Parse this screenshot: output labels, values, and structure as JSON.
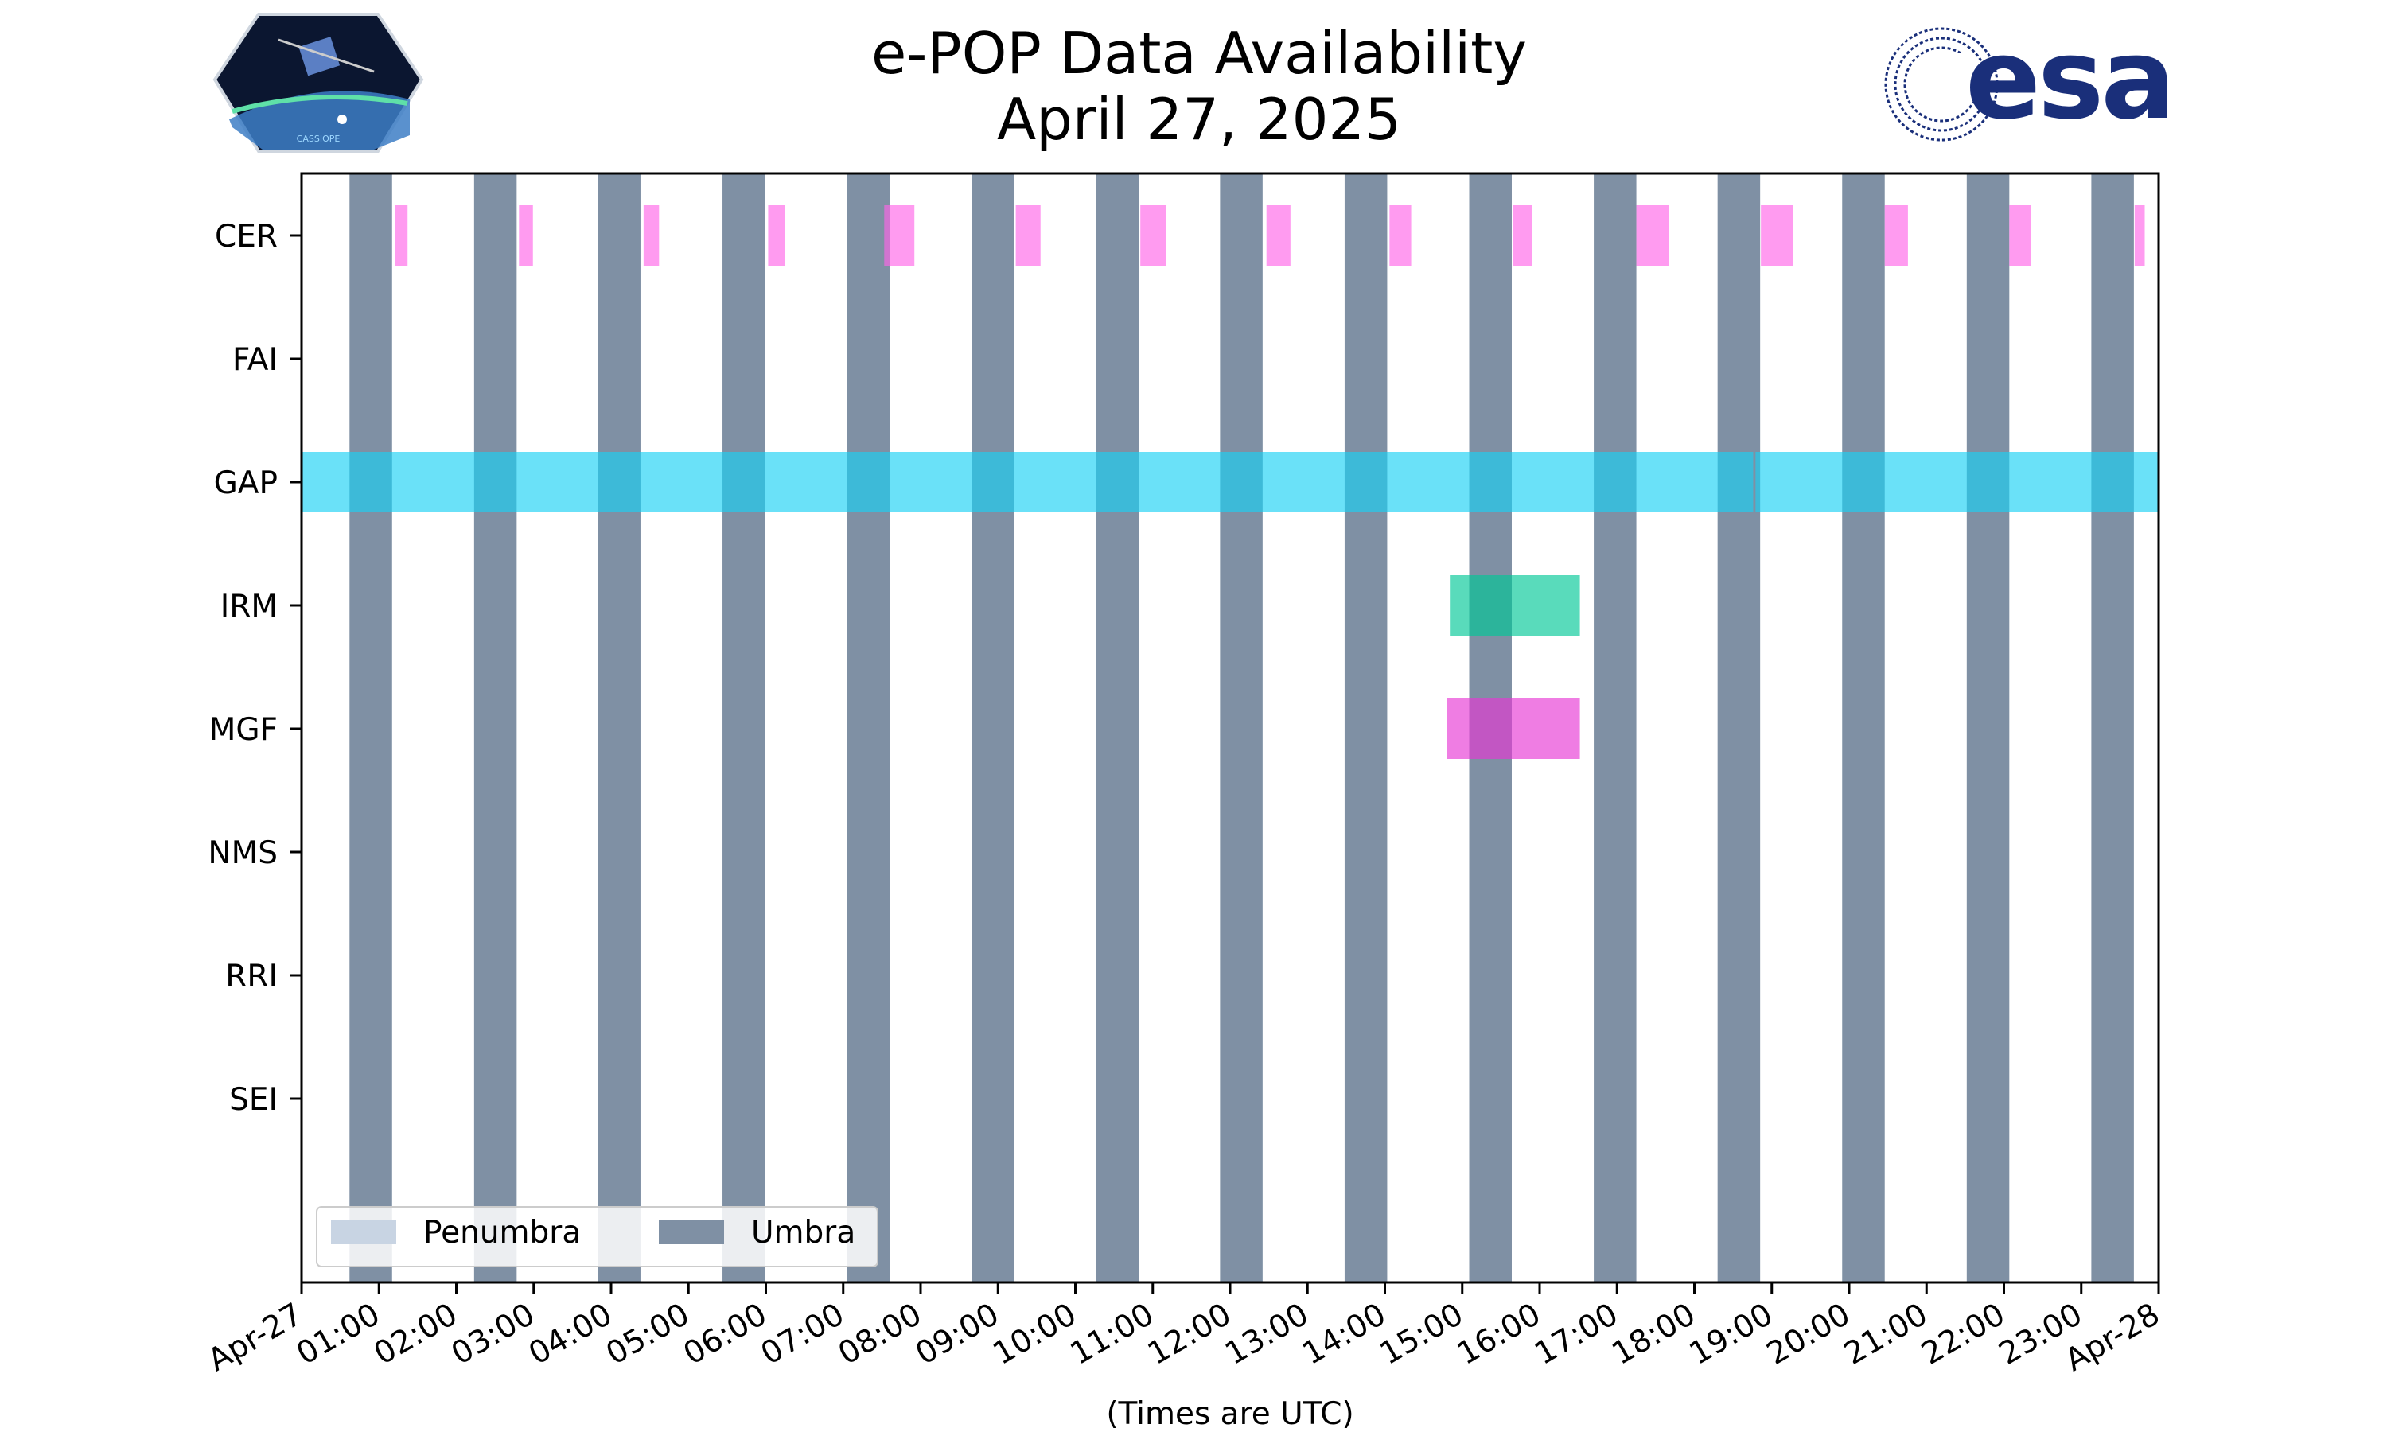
{
  "title_lines": [
    "e-POP Data Availability",
    "April 27, 2025"
  ],
  "xlabel": "(Times are UTC)",
  "logos": {
    "left": {
      "name": "CASSIOPE mission patch",
      "text": "CASSIOPE"
    },
    "right": {
      "name": "ESA logo",
      "text": "esa",
      "color": "#1a2f7a"
    }
  },
  "chart_data": {
    "type": "timeline",
    "title": "e-POP Data Availability",
    "subtitle": "April 27, 2025",
    "xlabel": "(Times are UTC)",
    "xlim_hours": [
      0,
      24
    ],
    "x_tick_labels": [
      "Apr-27",
      "01:00",
      "02:00",
      "03:00",
      "04:00",
      "05:00",
      "06:00",
      "07:00",
      "08:00",
      "09:00",
      "10:00",
      "11:00",
      "12:00",
      "13:00",
      "14:00",
      "15:00",
      "16:00",
      "17:00",
      "18:00",
      "19:00",
      "20:00",
      "21:00",
      "22:00",
      "23:00",
      "Apr-28"
    ],
    "instruments": [
      "CER",
      "FAI",
      "GAP",
      "IRM",
      "MGF",
      "NMS",
      "RRI",
      "SEI"
    ],
    "umbra": [
      [
        0.62,
        1.17
      ],
      [
        2.23,
        2.78
      ],
      [
        3.83,
        4.38
      ],
      [
        5.44,
        5.99
      ],
      [
        7.05,
        7.6
      ],
      [
        8.66,
        9.21
      ],
      [
        10.27,
        10.82
      ],
      [
        11.87,
        12.42
      ],
      [
        13.48,
        14.03
      ],
      [
        15.09,
        15.64
      ],
      [
        16.7,
        17.25
      ],
      [
        18.3,
        18.85
      ],
      [
        19.91,
        20.46
      ],
      [
        21.52,
        22.07
      ],
      [
        23.13,
        23.68
      ]
    ],
    "penumbra": [],
    "availability": {
      "CER": [
        [
          1.21,
          1.37
        ],
        [
          2.81,
          2.99
        ],
        [
          4.42,
          4.62
        ],
        [
          6.03,
          6.25
        ],
        [
          7.53,
          7.92
        ],
        [
          9.23,
          9.55
        ],
        [
          10.84,
          11.17
        ],
        [
          12.47,
          12.78
        ],
        [
          14.06,
          14.34
        ],
        [
          15.66,
          15.9
        ],
        [
          17.25,
          17.67
        ],
        [
          18.86,
          19.27
        ],
        [
          20.46,
          20.76
        ],
        [
          22.07,
          22.35
        ],
        [
          23.69,
          23.82
        ]
      ],
      "FAI": [],
      "GAP": [
        [
          0,
          18.76
        ],
        [
          18.79,
          24
        ]
      ],
      "IRM": [
        [
          14.84,
          16.52
        ]
      ],
      "MGF": [
        [
          14.8,
          16.52
        ]
      ],
      "NMS": [],
      "RRI": [],
      "SEI": []
    },
    "colors": {
      "CER": "#ff66e8",
      "GAP": "#1ad1f5",
      "IRM": "#00c896",
      "MGF": "#e637d4",
      "umbra": "#7f90a4",
      "penumbra": "#c8d4e3"
    },
    "grid": false,
    "legend": {
      "placement": "lower-left",
      "entries": [
        {
          "label": "Penumbra",
          "color": "#c8d4e3"
        },
        {
          "label": "Umbra",
          "color": "#7f90a4"
        }
      ]
    }
  }
}
